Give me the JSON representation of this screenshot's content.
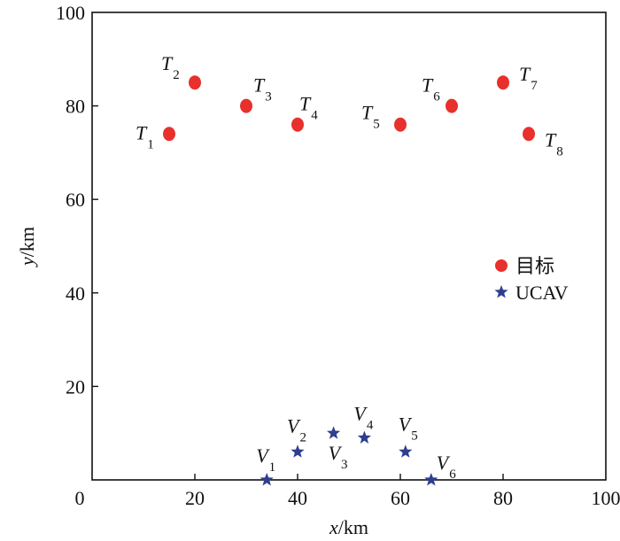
{
  "chart_data": {
    "type": "scatter",
    "xlabel": {
      "var": "x",
      "unit": "/km"
    },
    "ylabel": {
      "var": "y",
      "unit": "/km"
    },
    "xlim": [
      0,
      100
    ],
    "ylim": [
      0,
      100
    ],
    "xticks": [
      0,
      20,
      40,
      60,
      80,
      100
    ],
    "yticks": [
      20,
      40,
      60,
      80,
      100
    ],
    "grid": false,
    "legend_position": "right-middle",
    "series": [
      {
        "name": "目标",
        "marker": "circle",
        "color": "#e8302c",
        "points": [
          {
            "label": "T",
            "sub": "1",
            "x": 15,
            "y": 74
          },
          {
            "label": "T",
            "sub": "2",
            "x": 20,
            "y": 85
          },
          {
            "label": "T",
            "sub": "3",
            "x": 30,
            "y": 80
          },
          {
            "label": "T",
            "sub": "4",
            "x": 40,
            "y": 76
          },
          {
            "label": "T",
            "sub": "5",
            "x": 60,
            "y": 76
          },
          {
            "label": "T",
            "sub": "6",
            "x": 70,
            "y": 80
          },
          {
            "label": "T",
            "sub": "7",
            "x": 80,
            "y": 85
          },
          {
            "label": "T",
            "sub": "8",
            "x": 85,
            "y": 74
          }
        ]
      },
      {
        "name": "UCAV",
        "marker": "star",
        "color": "#2e3f8f",
        "points": [
          {
            "label": "V",
            "sub": "1",
            "x": 34,
            "y": 0
          },
          {
            "label": "V",
            "sub": "2",
            "x": 40,
            "y": 6
          },
          {
            "label": "V",
            "sub": "3",
            "x": 47,
            "y": 10
          },
          {
            "label": "V",
            "sub": "4",
            "x": 53,
            "y": 9
          },
          {
            "label": "V",
            "sub": "5",
            "x": 61,
            "y": 6
          },
          {
            "label": "V",
            "sub": "6",
            "x": 66,
            "y": 0
          }
        ]
      }
    ]
  }
}
